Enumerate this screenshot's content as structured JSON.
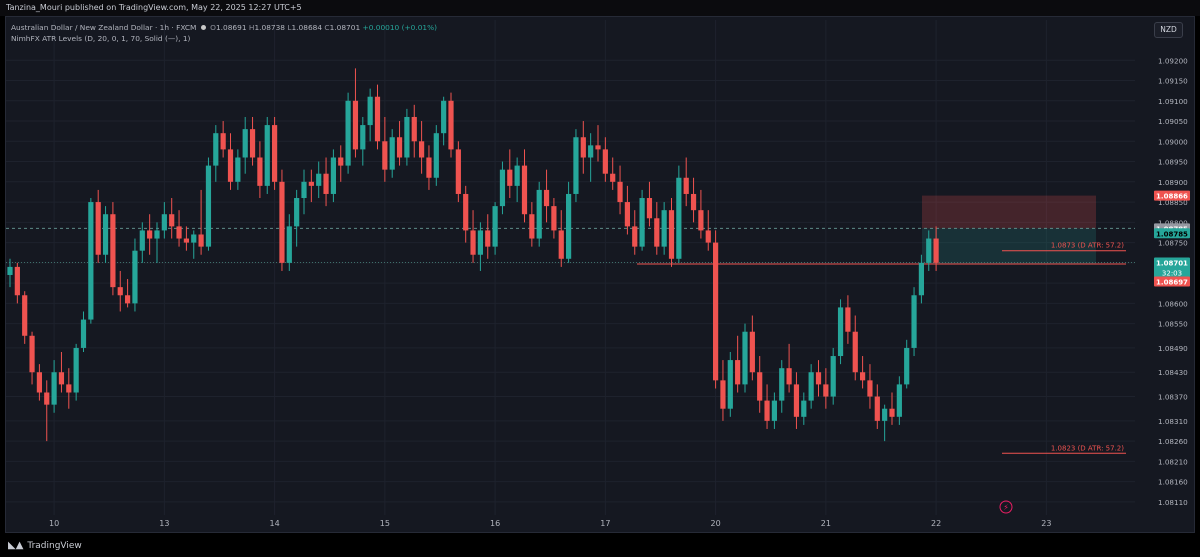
{
  "header": {
    "published_by": "Tanzina_Mouri published on TradingView.com, May 22, 2025 12:27 UTC+5"
  },
  "legend": {
    "symbol": "Australian Dollar / New Zealand Dollar · 1h · FXCM",
    "open_label": "O",
    "open": "1.08691",
    "high_label": "H",
    "high": "1.08738",
    "low_label": "L",
    "low": "1.08684",
    "close_label": "C",
    "close": "1.08701",
    "change": "+0.00010 (+0.01%)",
    "indicator": "NimhFX ATR Levels (D, 20, 0, 1, 70, Solid (—), 1)"
  },
  "currency_button": "NZD",
  "footer": {
    "brand": "TradingView",
    "logo_icon": "tradingview-logo-icon"
  },
  "colors": {
    "up": "#26a69a",
    "down": "#ef5350",
    "background": "#151821",
    "grid": "#1e222d",
    "text": "#b2b5be"
  },
  "chart_data": {
    "type": "candlestick",
    "timeframe": "1h",
    "ylim": [
      1.0809,
      1.0925
    ],
    "y_ticks": [
      "1.09200",
      "1.09150",
      "1.09100",
      "1.09050",
      "1.09000",
      "1.08950",
      "1.08900",
      "1.08850",
      "1.08800",
      "1.08750",
      "1.08700",
      "1.08650",
      "1.08600",
      "1.08550",
      "1.08490",
      "1.08430",
      "1.08370",
      "1.08310",
      "1.08260",
      "1.08210",
      "1.08160",
      "1.08110"
    ],
    "y_tick_values": [
      1.092,
      1.0915,
      1.091,
      1.0905,
      1.09,
      1.0895,
      1.089,
      1.0885,
      1.088,
      1.0875,
      1.087,
      1.0865,
      1.086,
      1.0855,
      1.0849,
      1.0843,
      1.0837,
      1.0831,
      1.0826,
      1.0821,
      1.0816,
      1.0811
    ],
    "x_ticks": [
      {
        "label": "10",
        "index": 6
      },
      {
        "label": "13",
        "index": 21
      },
      {
        "label": "14",
        "index": 36
      },
      {
        "label": "15",
        "index": 51
      },
      {
        "label": "16",
        "index": 66
      },
      {
        "label": "17",
        "index": 81
      },
      {
        "label": "20",
        "index": 96
      },
      {
        "label": "21",
        "index": 111
      },
      {
        "label": "22",
        "index": 126
      },
      {
        "label": "23",
        "index": 141
      }
    ],
    "candles": [
      [
        1.0867,
        1.0871,
        1.0864,
        1.0869
      ],
      [
        1.0869,
        1.087,
        1.086,
        1.0862
      ],
      [
        1.0862,
        1.0863,
        1.085,
        1.0852
      ],
      [
        1.0852,
        1.0853,
        1.084,
        1.0843
      ],
      [
        1.0843,
        1.0845,
        1.0836,
        1.0838
      ],
      [
        1.0838,
        1.0841,
        1.0826,
        1.0835
      ],
      [
        1.0835,
        1.0846,
        1.0833,
        1.0843
      ],
      [
        1.0843,
        1.0848,
        1.0838,
        1.084
      ],
      [
        1.084,
        1.0844,
        1.0834,
        1.0838
      ],
      [
        1.0838,
        1.085,
        1.0836,
        1.0849
      ],
      [
        1.0849,
        1.0858,
        1.0848,
        1.0856
      ],
      [
        1.0856,
        1.0886,
        1.0855,
        1.0885
      ],
      [
        1.0885,
        1.0888,
        1.087,
        1.0872
      ],
      [
        1.0872,
        1.0884,
        1.087,
        1.0882
      ],
      [
        1.0882,
        1.0885,
        1.0862,
        1.0864
      ],
      [
        1.0864,
        1.0868,
        1.0858,
        1.0862
      ],
      [
        1.0862,
        1.0866,
        1.0859,
        1.086
      ],
      [
        1.086,
        1.0876,
        1.0858,
        1.0873
      ],
      [
        1.0873,
        1.088,
        1.087,
        1.0878
      ],
      [
        1.0878,
        1.0882,
        1.0872,
        1.0876
      ],
      [
        1.0876,
        1.088,
        1.087,
        1.0878
      ],
      [
        1.0878,
        1.0885,
        1.0876,
        1.0882
      ],
      [
        1.0882,
        1.0886,
        1.0876,
        1.0879
      ],
      [
        1.0879,
        1.0883,
        1.0874,
        1.0876
      ],
      [
        1.0876,
        1.0879,
        1.0873,
        1.0875
      ],
      [
        1.0875,
        1.0878,
        1.0871,
        1.0877
      ],
      [
        1.0877,
        1.0888,
        1.0872,
        1.0874
      ],
      [
        1.0874,
        1.0896,
        1.0873,
        1.0894
      ],
      [
        1.0894,
        1.0904,
        1.089,
        1.0902
      ],
      [
        1.0902,
        1.0905,
        1.0896,
        1.0898
      ],
      [
        1.0898,
        1.0902,
        1.0888,
        1.089
      ],
      [
        1.089,
        1.0898,
        1.0888,
        1.0896
      ],
      [
        1.0896,
        1.0906,
        1.0892,
        1.0903
      ],
      [
        1.0903,
        1.0906,
        1.0894,
        1.0896
      ],
      [
        1.0896,
        1.09,
        1.0886,
        1.0889
      ],
      [
        1.0889,
        1.0906,
        1.0887,
        1.0904
      ],
      [
        1.0904,
        1.0906,
        1.0888,
        1.089
      ],
      [
        1.089,
        1.0893,
        1.0868,
        1.087
      ],
      [
        1.087,
        1.0882,
        1.0868,
        1.0879
      ],
      [
        1.0879,
        1.0888,
        1.0874,
        1.0886
      ],
      [
        1.0886,
        1.0893,
        1.0882,
        1.089
      ],
      [
        1.089,
        1.0893,
        1.0885,
        1.0889
      ],
      [
        1.0889,
        1.0895,
        1.0886,
        1.0892
      ],
      [
        1.0892,
        1.0896,
        1.0884,
        1.0887
      ],
      [
        1.0887,
        1.0898,
        1.0885,
        1.0896
      ],
      [
        1.0896,
        1.0899,
        1.089,
        1.0894
      ],
      [
        1.0894,
        1.0912,
        1.0892,
        1.091
      ],
      [
        1.091,
        1.0918,
        1.0896,
        1.0898
      ],
      [
        1.0898,
        1.0906,
        1.0894,
        1.0904
      ],
      [
        1.0904,
        1.0913,
        1.09,
        1.0911
      ],
      [
        1.0911,
        1.0914,
        1.0898,
        1.09
      ],
      [
        1.09,
        1.0906,
        1.089,
        1.0893
      ],
      [
        1.0893,
        1.0903,
        1.0891,
        1.0901
      ],
      [
        1.0901,
        1.0905,
        1.0894,
        1.0896
      ],
      [
        1.0896,
        1.0908,
        1.0894,
        1.0906
      ],
      [
        1.0906,
        1.0909,
        1.0896,
        1.09
      ],
      [
        1.09,
        1.0905,
        1.0892,
        1.0896
      ],
      [
        1.0896,
        1.0899,
        1.0888,
        1.0891
      ],
      [
        1.0891,
        1.0904,
        1.0889,
        1.0902
      ],
      [
        1.0902,
        1.0911,
        1.0899,
        1.091
      ],
      [
        1.091,
        1.0912,
        1.0896,
        1.0898
      ],
      [
        1.0898,
        1.09,
        1.0885,
        1.0887
      ],
      [
        1.0887,
        1.0889,
        1.0875,
        1.0878
      ],
      [
        1.0878,
        1.0883,
        1.087,
        1.0872
      ],
      [
        1.0872,
        1.088,
        1.0868,
        1.0878
      ],
      [
        1.0878,
        1.0882,
        1.0871,
        1.0874
      ],
      [
        1.0874,
        1.0885,
        1.0872,
        1.0884
      ],
      [
        1.0884,
        1.0895,
        1.0882,
        1.0893
      ],
      [
        1.0893,
        1.0898,
        1.0886,
        1.0889
      ],
      [
        1.0889,
        1.0896,
        1.0885,
        1.0894
      ],
      [
        1.0894,
        1.0898,
        1.088,
        1.0882
      ],
      [
        1.0882,
        1.0885,
        1.0874,
        1.0876
      ],
      [
        1.0876,
        1.089,
        1.0874,
        1.0888
      ],
      [
        1.0888,
        1.0893,
        1.088,
        1.0884
      ],
      [
        1.0884,
        1.0886,
        1.0876,
        1.0878
      ],
      [
        1.0878,
        1.0883,
        1.0869,
        1.0871
      ],
      [
        1.0871,
        1.089,
        1.087,
        1.0887
      ],
      [
        1.0887,
        1.0903,
        1.0885,
        1.0901
      ],
      [
        1.0901,
        1.0905,
        1.0892,
        1.0896
      ],
      [
        1.0896,
        1.0902,
        1.089,
        1.0899
      ],
      [
        1.0899,
        1.0904,
        1.0895,
        1.0898
      ],
      [
        1.0898,
        1.0901,
        1.089,
        1.0892
      ],
      [
        1.0892,
        1.0896,
        1.0888,
        1.089
      ],
      [
        1.089,
        1.0894,
        1.0882,
        1.0885
      ],
      [
        1.0885,
        1.0889,
        1.0877,
        1.0879
      ],
      [
        1.0879,
        1.0883,
        1.0872,
        1.0874
      ],
      [
        1.0874,
        1.0888,
        1.0873,
        1.0886
      ],
      [
        1.0886,
        1.089,
        1.0879,
        1.0881
      ],
      [
        1.0881,
        1.0885,
        1.0872,
        1.0874
      ],
      [
        1.0874,
        1.0885,
        1.0872,
        1.0883
      ],
      [
        1.0883,
        1.0886,
        1.0869,
        1.0871
      ],
      [
        1.0871,
        1.0894,
        1.087,
        1.0891
      ],
      [
        1.0891,
        1.0896,
        1.0884,
        1.0887
      ],
      [
        1.0887,
        1.0891,
        1.088,
        1.0883
      ],
      [
        1.0883,
        1.0888,
        1.0876,
        1.0878
      ],
      [
        1.0878,
        1.0883,
        1.0873,
        1.0875
      ],
      [
        1.0875,
        1.0878,
        1.0839,
        1.0841
      ],
      [
        1.0841,
        1.0846,
        1.0831,
        1.0834
      ],
      [
        1.0834,
        1.0848,
        1.0832,
        1.0846
      ],
      [
        1.0846,
        1.0852,
        1.0838,
        1.084
      ],
      [
        1.084,
        1.0855,
        1.0838,
        1.0853
      ],
      [
        1.0853,
        1.0857,
        1.0841,
        1.0843
      ],
      [
        1.0843,
        1.0847,
        1.0833,
        1.0836
      ],
      [
        1.0836,
        1.084,
        1.0829,
        1.0831
      ],
      [
        1.0831,
        1.0838,
        1.0829,
        1.0836
      ],
      [
        1.0836,
        1.0846,
        1.0833,
        1.0844
      ],
      [
        1.0844,
        1.085,
        1.0838,
        1.084
      ],
      [
        1.084,
        1.0843,
        1.0829,
        1.0832
      ],
      [
        1.0832,
        1.0838,
        1.083,
        1.0836
      ],
      [
        1.0836,
        1.0845,
        1.0834,
        1.0843
      ],
      [
        1.0843,
        1.0846,
        1.0837,
        1.084
      ],
      [
        1.084,
        1.0844,
        1.0834,
        1.0837
      ],
      [
        1.0837,
        1.0849,
        1.0835,
        1.0847
      ],
      [
        1.0847,
        1.0861,
        1.0845,
        1.0859
      ],
      [
        1.0859,
        1.0862,
        1.085,
        1.0853
      ],
      [
        1.0853,
        1.0857,
        1.0841,
        1.0843
      ],
      [
        1.0843,
        1.0847,
        1.0839,
        1.0841
      ],
      [
        1.0841,
        1.0845,
        1.0834,
        1.0837
      ],
      [
        1.0837,
        1.084,
        1.0829,
        1.0831
      ],
      [
        1.0831,
        1.0835,
        1.0826,
        1.0834
      ],
      [
        1.0834,
        1.0838,
        1.083,
        1.0832
      ],
      [
        1.0832,
        1.0842,
        1.083,
        1.084
      ],
      [
        1.084,
        1.0851,
        1.0839,
        1.0849
      ],
      [
        1.0849,
        1.0864,
        1.0847,
        1.0862
      ],
      [
        1.0862,
        1.0872,
        1.086,
        1.087
      ],
      [
        1.087,
        1.0878,
        1.0868,
        1.0876
      ],
      [
        1.0876,
        1.0879,
        1.0868,
        1.087
      ]
    ],
    "current_price": "1.08701",
    "countdown": "32:03",
    "price_labels": [
      {
        "value": "1.08866",
        "price": 1.08866,
        "color": "#ef5350"
      },
      {
        "value": "1.08785",
        "price": 1.08785,
        "color": "#9598a1"
      },
      {
        "value": "1.08785",
        "price": 1.08773,
        "color": "#26a69a",
        "text": "#000000"
      },
      {
        "value": "1.08701",
        "price": 1.08701,
        "color": "#26a69a"
      },
      {
        "value": "1.08697",
        "price": 1.08654,
        "color": "#ef5350"
      }
    ],
    "atr_levels": [
      {
        "label": "1.0873 (D ATR: 57.2)",
        "price": 1.0873
      },
      {
        "label": "1.0823 (D ATR: 57.2)",
        "price": 1.0823
      }
    ],
    "position": {
      "entry": 1.08697,
      "stop": 1.08866,
      "target_upper": 1.08785
    }
  }
}
